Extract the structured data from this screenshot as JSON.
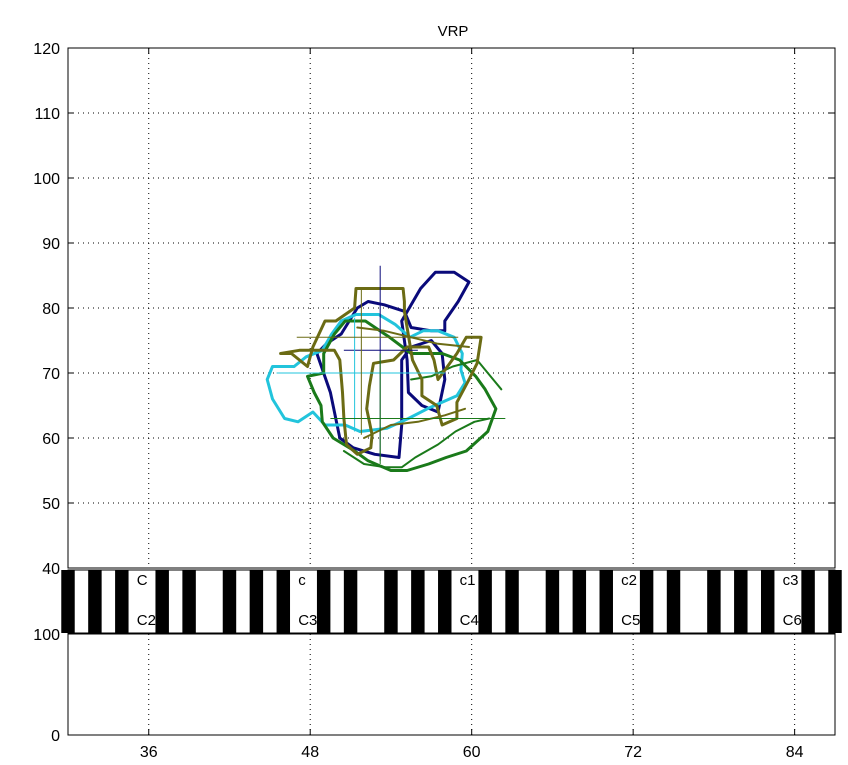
{
  "window": {
    "background": "#ffffff"
  },
  "chart_data": [
    {
      "type": "line",
      "title": "VRP",
      "xlabel": "",
      "ylabel": "",
      "xlim": [
        30,
        87
      ],
      "ylim": [
        40,
        120
      ],
      "x_ticks": [
        "36",
        "48",
        "60",
        "72",
        "84"
      ],
      "y_ticks": [
        "40",
        "50",
        "60",
        "70",
        "80",
        "90",
        "100",
        "110",
        "120"
      ],
      "grid": true,
      "grid_style": "dotted",
      "series": [
        {
          "color": "#0a0a7a",
          "width": 3,
          "points": [
            [
              50.3,
              76
            ],
            [
              49.2,
              74.5
            ],
            [
              48.5,
              73
            ],
            [
              49.5,
              67
            ],
            [
              50.2,
              60
            ],
            [
              51.2,
              58.5
            ],
            [
              52.8,
              57.5
            ],
            [
              54.6,
              57
            ],
            [
              54.8,
              62
            ],
            [
              54.8,
              72
            ],
            [
              55.5,
              74
            ],
            [
              57,
              75
            ],
            [
              57.8,
              73
            ],
            [
              58,
              69
            ],
            [
              57.5,
              64
            ],
            [
              56.3,
              65
            ],
            [
              55.3,
              67
            ],
            [
              55.2,
              72
            ],
            [
              54.8,
              78
            ],
            [
              56.2,
              83
            ],
            [
              57.3,
              85.5
            ],
            [
              58.7,
              85.5
            ],
            [
              59.8,
              84
            ],
            [
              59,
              81
            ],
            [
              58,
              78
            ],
            [
              58,
              76.5
            ],
            [
              57,
              76.5
            ],
            [
              55.5,
              77
            ],
            [
              55,
              79.5
            ],
            [
              53.5,
              80.5
            ],
            [
              52.3,
              81
            ],
            [
              51.5,
              80
            ],
            [
              50.3,
              76
            ]
          ]
        },
        {
          "color": "#22c4dc",
          "width": 3,
          "points": [
            [
              46.8,
              71
            ],
            [
              45.2,
              71
            ],
            [
              44.8,
              69
            ],
            [
              45.2,
              66
            ],
            [
              46.1,
              63
            ],
            [
              47.1,
              62.5
            ],
            [
              48.2,
              64
            ],
            [
              49.1,
              62
            ],
            [
              50.6,
              62
            ],
            [
              51.7,
              61
            ],
            [
              53.7,
              61.5
            ],
            [
              55.3,
              63
            ],
            [
              56.7,
              64.5
            ],
            [
              57.8,
              65.5
            ],
            [
              58.9,
              66.5
            ],
            [
              59.5,
              68.5
            ],
            [
              59.2,
              70.5
            ],
            [
              59.3,
              73
            ],
            [
              58.7,
              75.5
            ],
            [
              57.5,
              76.5
            ],
            [
              56.4,
              76.5
            ],
            [
              55.4,
              75.5
            ],
            [
              54.3,
              77.5
            ],
            [
              53.1,
              79
            ],
            [
              51.4,
              79
            ],
            [
              50.3,
              78
            ],
            [
              49.6,
              76
            ],
            [
              48.9,
              73.5
            ],
            [
              47.7,
              72.5
            ],
            [
              46.8,
              71
            ]
          ]
        },
        {
          "color": "#1a7a1a",
          "width": 3,
          "points": [
            [
              49,
              70
            ],
            [
              47.8,
              69.5
            ],
            [
              48.3,
              67
            ],
            [
              48.8,
              65
            ],
            [
              48.9,
              62.5
            ],
            [
              49.7,
              60
            ],
            [
              51.3,
              58
            ],
            [
              52.3,
              56.5
            ],
            [
              54,
              55
            ],
            [
              55.2,
              55
            ],
            [
              56.8,
              56
            ],
            [
              58.1,
              57
            ],
            [
              59.6,
              58
            ],
            [
              61.2,
              61
            ],
            [
              61.8,
              64.5
            ],
            [
              61,
              67.5
            ],
            [
              60.3,
              69.5
            ],
            [
              59.1,
              72
            ],
            [
              57.8,
              73
            ],
            [
              55.5,
              73
            ],
            [
              53.9,
              75.5
            ],
            [
              52.1,
              78
            ],
            [
              50.6,
              78
            ],
            [
              49.8,
              76
            ],
            [
              49,
              73
            ],
            [
              49,
              70
            ]
          ]
        },
        {
          "color": "#1a7a1a",
          "width": 2,
          "points": [
            [
              50.5,
              58
            ],
            [
              52,
              56
            ],
            [
              53.6,
              55.5
            ],
            [
              54.8,
              55.5
            ],
            [
              55.8,
              57
            ],
            [
              57.5,
              59
            ],
            [
              58.8,
              61
            ],
            [
              60.2,
              62.5
            ],
            [
              61.3,
              63
            ]
          ]
        },
        {
          "color": "#1a7a1a",
          "width": 2,
          "points": [
            [
              55.5,
              69
            ],
            [
              57,
              69.5
            ],
            [
              58.6,
              71
            ],
            [
              60.4,
              72
            ],
            [
              61.2,
              70
            ],
            [
              62.2,
              67.5
            ]
          ]
        },
        {
          "color": "#6b6b14",
          "width": 3,
          "points": [
            [
              45.8,
              73
            ],
            [
              46.6,
              73
            ],
            [
              47.8,
              71
            ],
            [
              48.2,
              74
            ],
            [
              49.1,
              78
            ],
            [
              49.9,
              78
            ],
            [
              51.3,
              80
            ],
            [
              51.4,
              83
            ],
            [
              53.1,
              83
            ],
            [
              54.9,
              83
            ],
            [
              55,
              81
            ],
            [
              55,
              79.5
            ],
            [
              55.6,
              72
            ],
            [
              56.3,
              69
            ],
            [
              56.3,
              66.5
            ],
            [
              57.4,
              65
            ],
            [
              57.8,
              62
            ],
            [
              58.9,
              63
            ],
            [
              58.9,
              65.5
            ],
            [
              59.8,
              69
            ],
            [
              60.4,
              71.5
            ],
            [
              60.7,
              75.5
            ],
            [
              59.6,
              75.5
            ],
            [
              58.9,
              73
            ],
            [
              57.5,
              69
            ],
            [
              57.2,
              72
            ],
            [
              56.8,
              74
            ],
            [
              55.2,
              74
            ],
            [
              54.2,
              72
            ],
            [
              52.7,
              71.5
            ],
            [
              52.4,
              68
            ],
            [
              52.2,
              64.5
            ],
            [
              52.6,
              60.5
            ],
            [
              52.5,
              58.5
            ],
            [
              51.5,
              57.5
            ],
            [
              50.7,
              59
            ],
            [
              50.5,
              63
            ],
            [
              50.4,
              67
            ],
            [
              50.2,
              72
            ],
            [
              49.8,
              73.5
            ],
            [
              47.2,
              73.5
            ],
            [
              45.8,
              73
            ]
          ]
        },
        {
          "color": "#6b6b14",
          "width": 2,
          "points": [
            [
              51.5,
              77
            ],
            [
              53.5,
              76.5
            ],
            [
              55.5,
              75.5
            ],
            [
              57.5,
              74.5
            ],
            [
              59.8,
              74
            ]
          ]
        },
        {
          "color": "#6b6b14",
          "width": 2,
          "points": [
            [
              52,
              60
            ],
            [
              54,
              62
            ],
            [
              56,
              62.5
            ],
            [
              58,
              63.5
            ],
            [
              59.5,
              64.5
            ]
          ]
        }
      ],
      "crosshairs": [
        {
          "color": "#0a0a7a",
          "center": [
            53.2,
            73.5
          ],
          "x_range": [
            50.5,
            56.0
          ],
          "y_range": [
            56.5,
            86.5
          ]
        },
        {
          "color": "#22c4dc",
          "center": [
            51.3,
            70.0
          ],
          "x_range": [
            45.5,
            58.0
          ],
          "y_range": [
            61.0,
            78.5
          ]
        },
        {
          "color": "#1a7a1a",
          "center": [
            53.2,
            63.0
          ],
          "x_range": [
            49.5,
            62.5
          ],
          "y_range": [
            56.0,
            73.0
          ]
        },
        {
          "color": "#6b6b14",
          "center": [
            51.8,
            75.5
          ],
          "x_range": [
            47.0,
            59.0
          ],
          "y_range": [
            60.5,
            83.0
          ]
        }
      ]
    },
    {
      "type": "other",
      "x_ticks": [
        "36",
        "48",
        "60",
        "72",
        "84"
      ],
      "keyboard": {
        "first_midi_note": 30,
        "last_midi_note": 87,
        "white_color": "#ffffff",
        "black_color": "#000000",
        "labels_upper": [
          {
            "text": "C",
            "midi": 36
          },
          {
            "text": "c",
            "midi": 48
          },
          {
            "text": "c1",
            "midi": 60
          },
          {
            "text": "c2",
            "midi": 72
          },
          {
            "text": "c3",
            "midi": 84
          }
        ],
        "labels_lower": [
          {
            "text": "C2",
            "midi": 36
          },
          {
            "text": "C3",
            "midi": 48
          },
          {
            "text": "C4",
            "midi": 60
          },
          {
            "text": "C5",
            "midi": 72
          },
          {
            "text": "C6",
            "midi": 84
          }
        ]
      }
    },
    {
      "type": "line",
      "xlim": [
        30,
        87
      ],
      "ylim": [
        0,
        100
      ],
      "y_ticks": [
        "0",
        "100"
      ],
      "x_ticks": [
        "36",
        "48",
        "60",
        "72",
        "84"
      ],
      "grid": true,
      "grid_style": "dotted"
    }
  ]
}
